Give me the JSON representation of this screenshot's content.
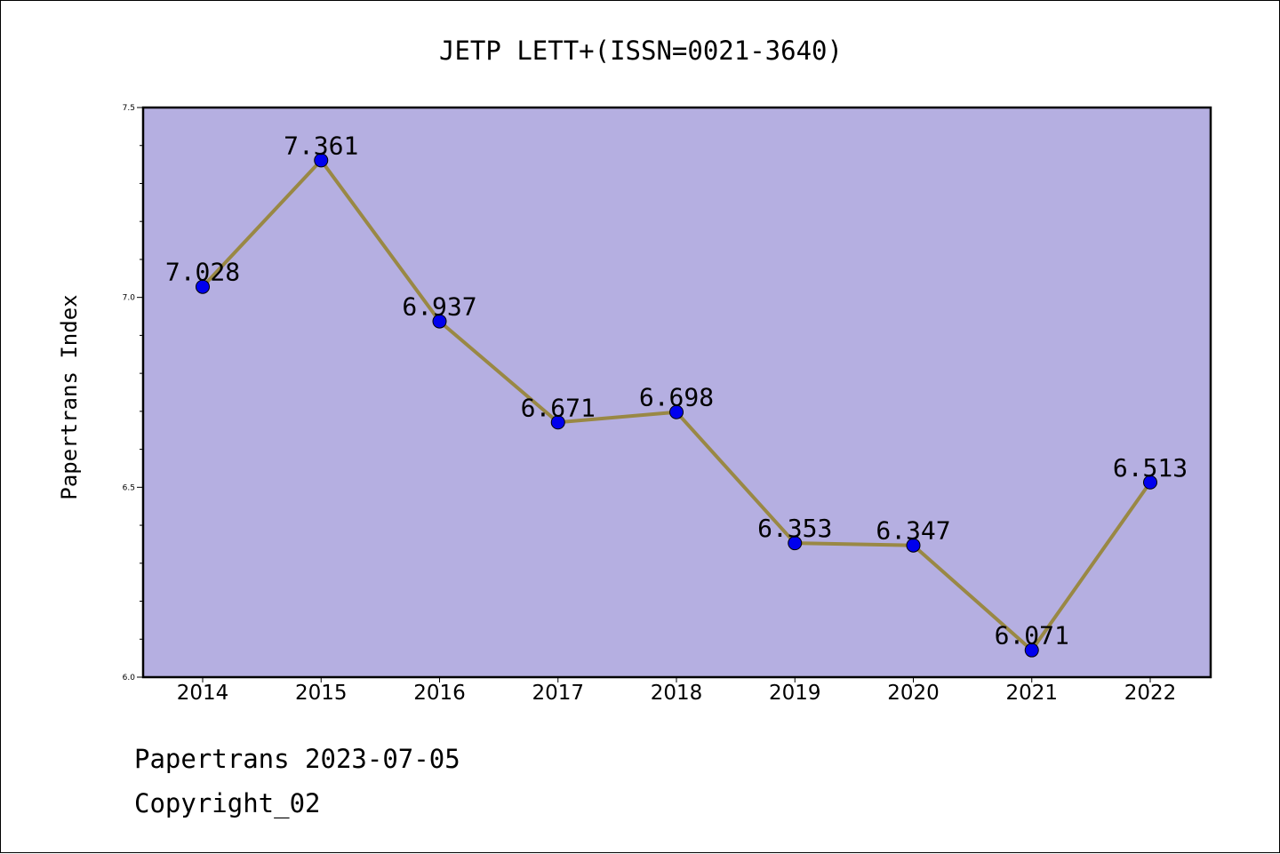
{
  "chart_data": {
    "type": "line",
    "title": "JETP LETT+(ISSN=0021-3640)",
    "xlabel": "",
    "ylabel": "Papertrans Index",
    "categories": [
      "2014",
      "2015",
      "2016",
      "2017",
      "2018",
      "2019",
      "2020",
      "2021",
      "2022"
    ],
    "values": [
      7.028,
      7.361,
      6.937,
      6.671,
      6.698,
      6.353,
      6.347,
      6.071,
      6.513
    ],
    "data_labels": [
      "7.028",
      "7.361",
      "6.937",
      "6.671",
      "6.698",
      "6.353",
      "6.347",
      "6.071",
      "6.513"
    ],
    "ylim": [
      6.0,
      7.5
    ],
    "yticks": [
      "6.0",
      "6.5",
      "7.0",
      "7.5"
    ],
    "grid": false,
    "colors": {
      "plot_background": "#b5afe1",
      "line": "#998844",
      "marker": "#0000ee"
    }
  },
  "footer": {
    "date_text": "Papertrans 2023-07-05",
    "copyright_text": "Copyright_02"
  }
}
